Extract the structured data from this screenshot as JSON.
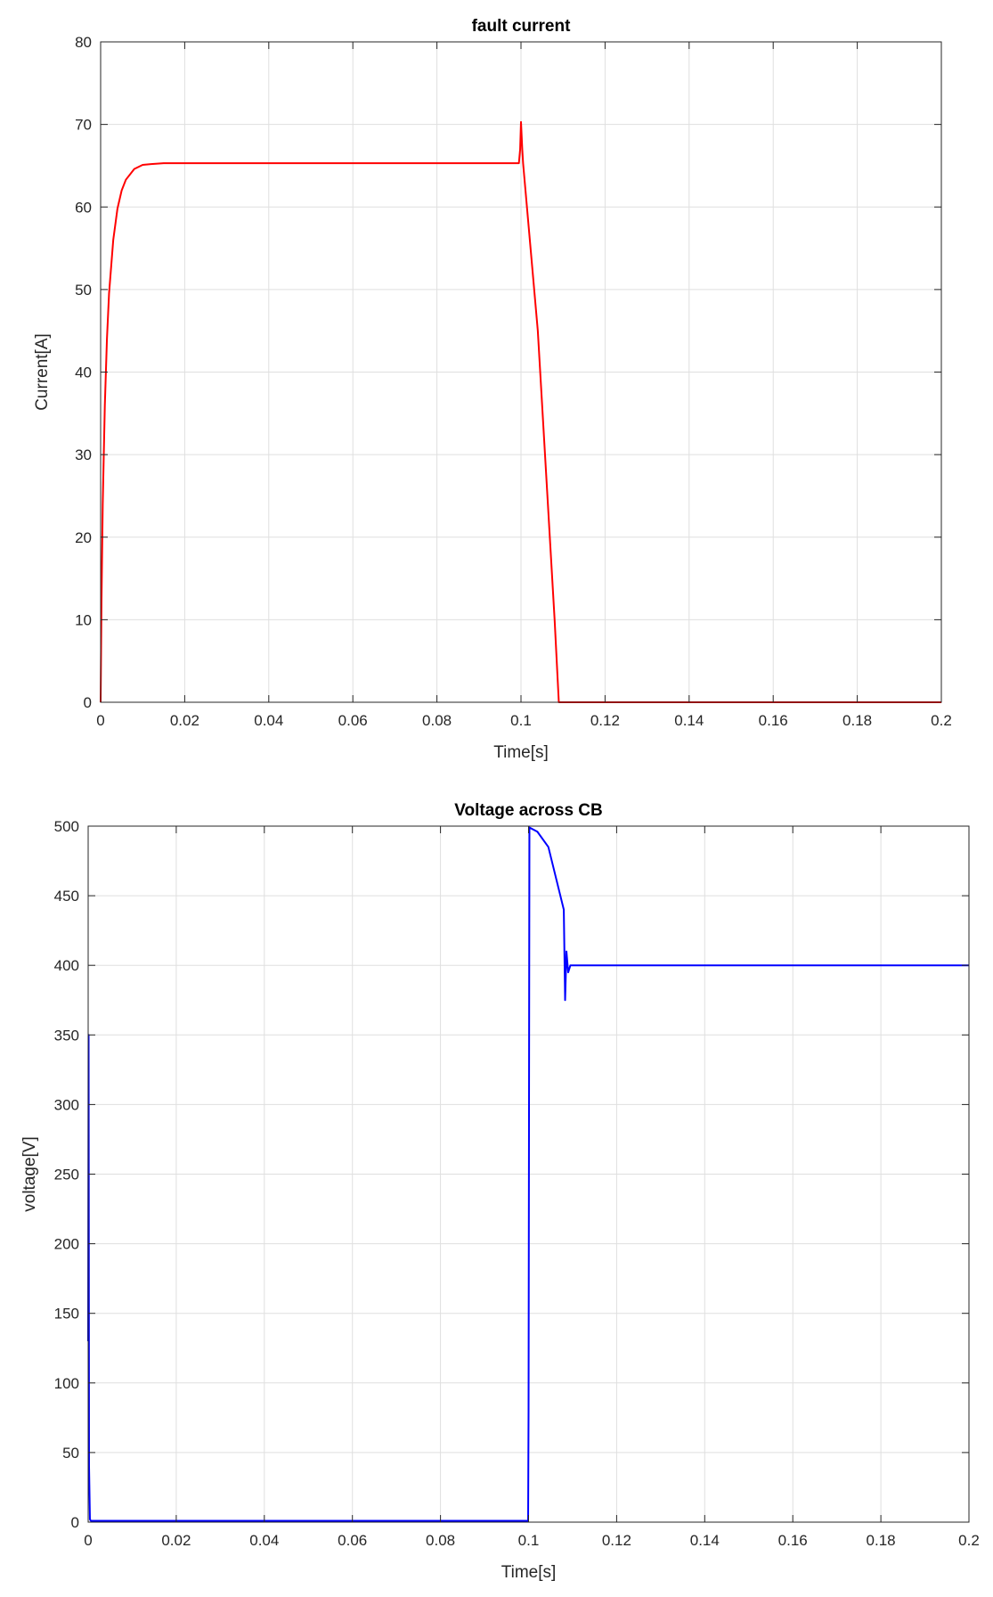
{
  "chart_data": [
    {
      "type": "line",
      "title": "fault current",
      "xlabel": "Time[s]",
      "ylabel": "Current[A]",
      "xlim": [
        0,
        0.2
      ],
      "ylim": [
        0,
        80
      ],
      "grid": true,
      "xticks": [
        0,
        0.02,
        0.04,
        0.06,
        0.08,
        0.1,
        0.12,
        0.14,
        0.16,
        0.18,
        0.2
      ],
      "xtick_labels": [
        "0",
        "0.02",
        "0.04",
        "0.06",
        "0.08",
        "0.1",
        "0.12",
        "0.14",
        "0.16",
        "0.18",
        "0.2"
      ],
      "yticks": [
        0,
        10,
        20,
        30,
        40,
        50,
        60,
        70,
        80
      ],
      "ytick_labels": [
        "0",
        "10",
        "20",
        "30",
        "40",
        "50",
        "60",
        "70",
        "80"
      ],
      "series": [
        {
          "color": "#ff0000",
          "x": [
            0,
            0.0002,
            0.0005,
            0.001,
            0.0015,
            0.002,
            0.003,
            0.004,
            0.005,
            0.006,
            0.008,
            0.01,
            0.012,
            0.015,
            0.02,
            0.05,
            0.0995,
            0.0998,
            0.1,
            0.1003,
            0.1005,
            0.104,
            0.108,
            0.109,
            0.11,
            0.15,
            0.2
          ],
          "y": [
            0,
            12,
            24,
            36,
            44,
            49.5,
            56,
            59.8,
            62,
            63.3,
            64.6,
            65.1,
            65.2,
            65.3,
            65.3,
            65.3,
            65.3,
            67,
            70.3,
            67,
            65.3,
            45,
            10,
            0,
            0,
            0,
            0
          ]
        }
      ]
    },
    {
      "type": "line",
      "title": "Voltage across CB",
      "xlabel": "Time[s]",
      "ylabel": "voltage[V]",
      "xlim": [
        0,
        0.2
      ],
      "ylim": [
        0,
        500
      ],
      "grid": true,
      "xticks": [
        0,
        0.02,
        0.04,
        0.06,
        0.08,
        0.1,
        0.12,
        0.14,
        0.16,
        0.18,
        0.2
      ],
      "xtick_labels": [
        "0",
        "0.02",
        "0.04",
        "0.06",
        "0.08",
        "0.1",
        "0.12",
        "0.14",
        "0.16",
        "0.18",
        "0.2"
      ],
      "yticks": [
        0,
        50,
        100,
        150,
        200,
        250,
        300,
        350,
        400,
        450,
        500
      ],
      "ytick_labels": [
        "0",
        "50",
        "100",
        "150",
        "200",
        "250",
        "300",
        "350",
        "400",
        "450",
        "500"
      ],
      "series": [
        {
          "color": "#0000ff",
          "x": [
            0,
            0.0001,
            0.0002,
            0.0004,
            0.0006,
            0.02,
            0.05,
            0.0999,
            0.1,
            0.1002,
            0.102,
            0.1045,
            0.108,
            0.1083,
            0.1086,
            0.109,
            0.1095,
            0.12,
            0.15,
            0.2
          ],
          "y": [
            130,
            350,
            40,
            2,
            1,
            1,
            1,
            1,
            80,
            499,
            496,
            485,
            440,
            375,
            410,
            395,
            400,
            400,
            400,
            400
          ]
        }
      ]
    }
  ]
}
